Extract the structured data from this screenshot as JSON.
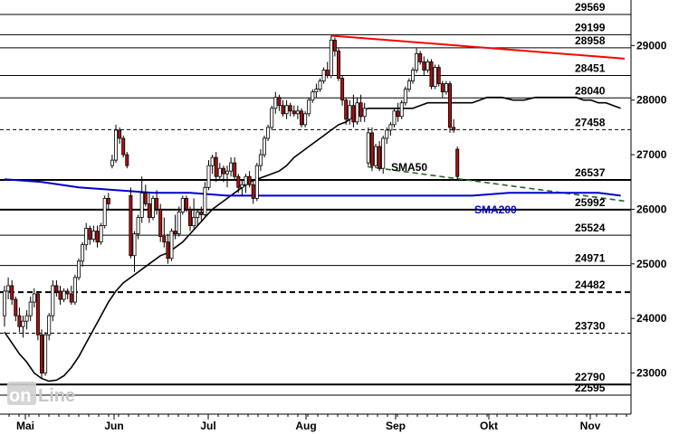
{
  "chart_data": {
    "type": "candlestick",
    "ylim": [
      22450,
      29700
    ],
    "y_ticks": [
      23000,
      24000,
      25000,
      26000,
      27000,
      28000,
      29000
    ],
    "x_labels": [
      "Mai",
      "Jun",
      "Jul",
      "Aug",
      "Sep",
      "Okt",
      "Nov"
    ],
    "horizontal_levels": [
      {
        "label": "29569",
        "value": 29569,
        "style": "solid"
      },
      {
        "label": "29199",
        "value": 29199,
        "style": "solid"
      },
      {
        "label": "28958",
        "value": 28958,
        "style": "solid"
      },
      {
        "label": "28451",
        "value": 28451,
        "style": "solid"
      },
      {
        "label": "28040",
        "value": 28040,
        "style": "solid"
      },
      {
        "label": "27458",
        "value": 27458,
        "style": "dashed"
      },
      {
        "label": "26537",
        "value": 26537,
        "style": "solid-bold"
      },
      {
        "label": "25992",
        "value": 25992,
        "style": "solid-bold"
      },
      {
        "label": "25524",
        "value": 25524,
        "style": "solid"
      },
      {
        "label": "24971",
        "value": 24971,
        "style": "solid"
      },
      {
        "label": "24482",
        "value": 24482,
        "style": "dashed-bold"
      },
      {
        "label": "23730",
        "value": 23730,
        "style": "dashed"
      },
      {
        "label": "22790",
        "value": 22790,
        "style": "solid-bold"
      },
      {
        "label": "22595",
        "value": 22595,
        "style": "solid"
      }
    ],
    "candles": [
      [
        24050,
        24600,
        23850,
        24500
      ],
      [
        24500,
        24750,
        24350,
        24600
      ],
      [
        24600,
        24700,
        24250,
        24350
      ],
      [
        24350,
        24400,
        23950,
        24050
      ],
      [
        24050,
        24200,
        23750,
        23850
      ],
      [
        23850,
        24050,
        23650,
        23950
      ],
      [
        23950,
        24150,
        23800,
        24050
      ],
      [
        24050,
        24400,
        23950,
        24300
      ],
      [
        24300,
        24550,
        24200,
        24450
      ],
      [
        24450,
        24500,
        23600,
        23700
      ],
      [
        23700,
        23800,
        22900,
        23000
      ],
      [
        23000,
        23750,
        22950,
        23700
      ],
      [
        23700,
        24100,
        23600,
        24050
      ],
      [
        24050,
        24700,
        23950,
        24600
      ],
      [
        24600,
        24700,
        24400,
        24500
      ],
      [
        24500,
        24600,
        24250,
        24350
      ],
      [
        24350,
        24550,
        24300,
        24500
      ],
      [
        24500,
        24550,
        24350,
        24450
      ],
      [
        24450,
        24600,
        24250,
        24300
      ],
      [
        24300,
        24800,
        24250,
        24750
      ],
      [
        24750,
        25100,
        24700,
        25050
      ],
      [
        25050,
        25400,
        24950,
        25350
      ],
      [
        25350,
        25750,
        25250,
        25650
      ],
      [
        25650,
        25700,
        25350,
        25450
      ],
      [
        25450,
        25700,
        25400,
        25600
      ],
      [
        25600,
        25700,
        25300,
        25400
      ],
      [
        25400,
        25750,
        25350,
        25700
      ],
      [
        25700,
        26250,
        25650,
        26200
      ],
      [
        26200,
        26300,
        26000,
        26100
      ],
      [
        26800,
        27000,
        26750,
        26900
      ],
      [
        26900,
        27550,
        26850,
        27450
      ],
      [
        27450,
        27500,
        27200,
        27300
      ],
      [
        27300,
        27350,
        26950,
        27000
      ],
      [
        27000,
        27050,
        26750,
        26800
      ],
      [
        26250,
        26400,
        25100,
        25150
      ],
      [
        25150,
        25600,
        24850,
        25550
      ],
      [
        25550,
        25900,
        25450,
        25850
      ],
      [
        25850,
        26600,
        25750,
        26300
      ],
      [
        26300,
        26450,
        26050,
        26100
      ],
      [
        26100,
        26300,
        25750,
        25850
      ],
      [
        25850,
        26250,
        25800,
        26200
      ],
      [
        26200,
        26350,
        25900,
        26000
      ],
      [
        26000,
        26100,
        25400,
        25500
      ],
      [
        25500,
        25850,
        25300,
        25400
      ],
      [
        25400,
        25550,
        25000,
        25100
      ],
      [
        25100,
        25650,
        25050,
        25600
      ],
      [
        25600,
        25900,
        25450,
        25550
      ],
      [
        25550,
        26050,
        25500,
        25950
      ],
      [
        25950,
        26250,
        25900,
        26200
      ],
      [
        26200,
        26250,
        25950,
        26000
      ],
      [
        26000,
        26050,
        25600,
        25700
      ],
      [
        25700,
        26200,
        25650,
        25850
      ],
      [
        25850,
        26000,
        25700,
        25950
      ],
      [
        25950,
        26050,
        25800,
        25900
      ],
      [
        25900,
        26500,
        25850,
        26400
      ],
      [
        26400,
        26900,
        26350,
        26800
      ],
      [
        26800,
        27000,
        26650,
        26950
      ],
      [
        26950,
        27050,
        26500,
        26600
      ],
      [
        26600,
        26850,
        26550,
        26750
      ],
      [
        26750,
        26800,
        26500,
        26650
      ],
      [
        26650,
        26800,
        26400,
        26700
      ],
      [
        26700,
        26950,
        26600,
        26850
      ],
      [
        26850,
        26950,
        26550,
        26600
      ],
      [
        26600,
        26650,
        26300,
        26400
      ],
      [
        26400,
        26550,
        26250,
        26450
      ],
      [
        26450,
        26650,
        26300,
        26600
      ],
      [
        26600,
        26700,
        26400,
        26450
      ],
      [
        26450,
        26550,
        26100,
        26200
      ],
      [
        26200,
        26850,
        26150,
        26800
      ],
      [
        26800,
        27100,
        26700,
        27000
      ],
      [
        27000,
        27350,
        26950,
        27300
      ],
      [
        27300,
        27550,
        27250,
        27500
      ],
      [
        27500,
        27900,
        27450,
        27850
      ],
      [
        27850,
        28150,
        27750,
        28050
      ],
      [
        28050,
        28100,
        27800,
        27900
      ],
      [
        27900,
        28000,
        27700,
        27750
      ],
      [
        27750,
        28000,
        27650,
        27900
      ],
      [
        27900,
        27950,
        27700,
        27800
      ],
      [
        27800,
        27900,
        27700,
        27750
      ],
      [
        27750,
        27900,
        27650,
        27800
      ],
      [
        27800,
        27850,
        27500,
        27550
      ],
      [
        27550,
        27800,
        27500,
        27750
      ],
      [
        27750,
        28050,
        27700,
        28000
      ],
      [
        28000,
        28200,
        27950,
        28150
      ],
      [
        28150,
        28300,
        28050,
        28200
      ],
      [
        28200,
        28400,
        28150,
        28350
      ],
      [
        28350,
        28600,
        28300,
        28550
      ],
      [
        28550,
        28700,
        28400,
        28450
      ],
      [
        28450,
        29180,
        28400,
        29100
      ],
      [
        29100,
        29150,
        28800,
        28900
      ],
      [
        28900,
        28950,
        28350,
        28400
      ],
      [
        28400,
        28450,
        27900,
        28000
      ],
      [
        28000,
        28050,
        27550,
        27650
      ],
      [
        27650,
        28000,
        27550,
        27900
      ],
      [
        27900,
        28100,
        27500,
        27600
      ],
      [
        27600,
        28050,
        27550,
        27950
      ],
      [
        27950,
        28100,
        27600,
        27700
      ],
      [
        27700,
        27950,
        27600,
        27850
      ],
      [
        26850,
        27500,
        26800,
        27400
      ],
      [
        27400,
        27500,
        26700,
        26800
      ],
      [
        26800,
        27200,
        26750,
        27150
      ],
      [
        27150,
        27250,
        26700,
        26750
      ],
      [
        26750,
        27350,
        26650,
        27300
      ],
      [
        27300,
        27500,
        27200,
        27450
      ],
      [
        27450,
        27600,
        27350,
        27550
      ],
      [
        27550,
        27850,
        27500,
        27800
      ],
      [
        27800,
        27950,
        27600,
        27700
      ],
      [
        27700,
        28000,
        27650,
        27950
      ],
      [
        27950,
        28250,
        27900,
        28200
      ],
      [
        28200,
        28400,
        28150,
        28350
      ],
      [
        28350,
        28600,
        28300,
        28550
      ],
      [
        28550,
        28950,
        28500,
        28850
      ],
      [
        28850,
        28900,
        28650,
        28700
      ],
      [
        28700,
        28800,
        28450,
        28550
      ],
      [
        28550,
        28750,
        28500,
        28700
      ],
      [
        28700,
        28750,
        28200,
        28250
      ],
      [
        28250,
        28650,
        28200,
        28600
      ],
      [
        28600,
        28650,
        28250,
        28300
      ],
      [
        28300,
        28350,
        28050,
        28150
      ],
      [
        28150,
        28350,
        28100,
        28300
      ],
      [
        28300,
        28350,
        27400,
        27500
      ],
      [
        27500,
        27650,
        27400,
        27450
      ],
      [
        27100,
        27150,
        26550,
        26600
      ]
    ],
    "sma_lines": [
      {
        "name": "SMA50",
        "color": "#000000",
        "points": [
          [
            0,
            23750
          ],
          [
            2,
            23550
          ],
          [
            4,
            23350
          ],
          [
            6,
            23200
          ],
          [
            8,
            23000
          ],
          [
            10,
            22900
          ],
          [
            12,
            22850
          ],
          [
            14,
            22870
          ],
          [
            16,
            22950
          ],
          [
            18,
            23100
          ],
          [
            20,
            23300
          ],
          [
            22,
            23550
          ],
          [
            24,
            23800
          ],
          [
            26,
            24050
          ],
          [
            28,
            24300
          ],
          [
            30,
            24500
          ],
          [
            32,
            24650
          ],
          [
            34,
            24750
          ],
          [
            36,
            24850
          ],
          [
            38,
            24950
          ],
          [
            40,
            25050
          ],
          [
            42,
            25150
          ],
          [
            44,
            25200
          ],
          [
            46,
            25300
          ],
          [
            48,
            25400
          ],
          [
            50,
            25550
          ],
          [
            52,
            25700
          ],
          [
            54,
            25850
          ],
          [
            56,
            26000
          ],
          [
            58,
            26100
          ],
          [
            60,
            26200
          ],
          [
            62,
            26300
          ],
          [
            64,
            26400
          ],
          [
            66,
            26500
          ],
          [
            68,
            26550
          ],
          [
            70,
            26600
          ],
          [
            72,
            26650
          ],
          [
            74,
            26700
          ],
          [
            76,
            26800
          ],
          [
            78,
            26950
          ],
          [
            80,
            27050
          ],
          [
            82,
            27150
          ],
          [
            84,
            27250
          ],
          [
            86,
            27350
          ],
          [
            88,
            27450
          ],
          [
            90,
            27550
          ],
          [
            92,
            27600
          ],
          [
            94,
            27700
          ],
          [
            96,
            27800
          ],
          [
            98,
            27850
          ],
          [
            100,
            27850
          ],
          [
            102,
            27850
          ],
          [
            104,
            27850
          ],
          [
            106,
            27850
          ],
          [
            108,
            27850
          ],
          [
            110,
            27850
          ],
          [
            112,
            27900
          ],
          [
            114,
            27950
          ],
          [
            116,
            27950
          ],
          [
            118,
            27950
          ],
          [
            120,
            27950
          ],
          [
            122,
            27950
          ],
          [
            124,
            27950
          ],
          [
            126,
            27950
          ],
          [
            128,
            28000
          ],
          [
            130,
            28050
          ],
          [
            131,
            28050
          ],
          [
            132,
            28050
          ],
          [
            134,
            28050
          ],
          [
            137,
            28000
          ],
          [
            140,
            28000
          ],
          [
            143,
            28050
          ],
          [
            146,
            28050
          ],
          [
            148,
            28050
          ],
          [
            150,
            28050
          ],
          [
            152,
            28050
          ],
          [
            154,
            28050
          ],
          [
            156,
            28000
          ],
          [
            158,
            28000
          ],
          [
            160,
            27950
          ],
          [
            162,
            27950
          ],
          [
            164,
            27900
          ],
          [
            166,
            27850
          ]
        ]
      },
      {
        "name": "SMA200",
        "color": "#0000cc",
        "points": [
          [
            0,
            26550
          ],
          [
            10,
            26500
          ],
          [
            20,
            26400
          ],
          [
            30,
            26350
          ],
          [
            40,
            26300
          ],
          [
            50,
            26300
          ],
          [
            60,
            26250
          ],
          [
            70,
            26250
          ],
          [
            80,
            26250
          ],
          [
            90,
            26250
          ],
          [
            100,
            26250
          ],
          [
            110,
            26250
          ],
          [
            116,
            26250
          ],
          [
            126,
            26250
          ],
          [
            136,
            26300
          ],
          [
            146,
            26300
          ],
          [
            156,
            26300
          ],
          [
            160,
            26300
          ],
          [
            166,
            26250
          ]
        ]
      }
    ],
    "annotations": [
      {
        "text": "SMA50"
      },
      {
        "text": "SMA200"
      }
    ]
  }
}
